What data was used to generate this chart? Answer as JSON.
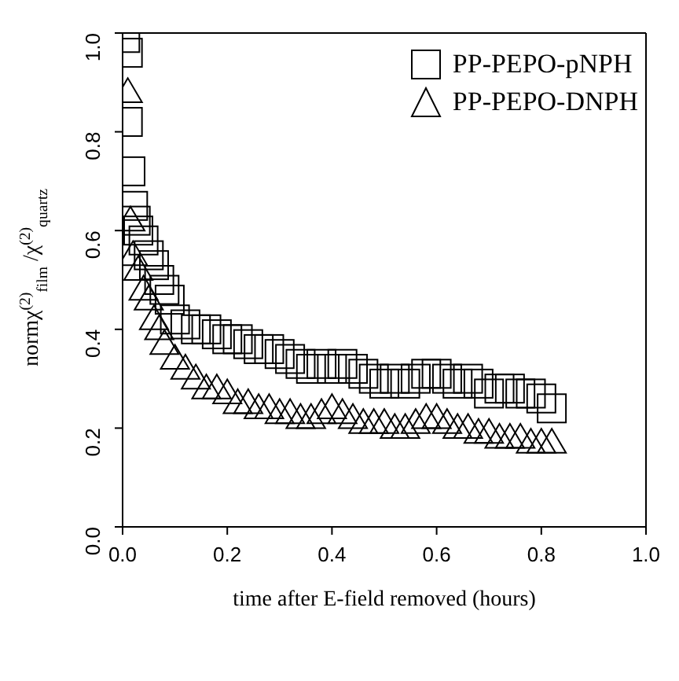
{
  "chart_data": {
    "type": "scatter",
    "xlabel": "time after E-field removed (hours)",
    "ylabel": "normχ$^{(2)}$$_{film}$ /χ$^{(2)}$$_{quartz}$",
    "xlim": [
      0,
      1
    ],
    "ylim": [
      0,
      1
    ],
    "xticks": [
      {
        "value": 0,
        "label": "0.0"
      },
      0.2,
      0.4,
      0.6,
      0.8,
      {
        "value": 1,
        "label": "1.0"
      }
    ],
    "yticks": [
      {
        "value": 0,
        "label": "0.0"
      },
      0.2,
      0.4,
      0.6,
      0.8,
      {
        "value": 1,
        "label": "1.0"
      }
    ],
    "legend": "top right",
    "grid": false,
    "series": [
      {
        "name": "PP-PEPO-pNPH",
        "color": "#000000",
        "marker": "square",
        "x": [
          0.005,
          0.01,
          0.01,
          0.015,
          0.02,
          0.025,
          0.03,
          0.04,
          0.05,
          0.06,
          0.07,
          0.08,
          0.09,
          0.1,
          0.12,
          0.14,
          0.16,
          0.18,
          0.2,
          0.22,
          0.24,
          0.26,
          0.28,
          0.3,
          0.32,
          0.34,
          0.36,
          0.38,
          0.4,
          0.42,
          0.44,
          0.46,
          0.48,
          0.5,
          0.52,
          0.54,
          0.56,
          0.58,
          0.6,
          0.62,
          0.64,
          0.66,
          0.68,
          0.7,
          0.72,
          0.74,
          0.76,
          0.78,
          0.8,
          0.82
        ],
        "values": [
          0.99,
          0.96,
          0.82,
          0.72,
          0.65,
          0.62,
          0.6,
          0.58,
          0.55,
          0.53,
          0.5,
          0.48,
          0.46,
          0.42,
          0.41,
          0.4,
          0.4,
          0.39,
          0.38,
          0.38,
          0.37,
          0.36,
          0.36,
          0.35,
          0.34,
          0.33,
          0.32,
          0.33,
          0.32,
          0.33,
          0.32,
          0.31,
          0.3,
          0.29,
          0.3,
          0.29,
          0.3,
          0.31,
          0.31,
          0.3,
          0.29,
          0.3,
          0.29,
          0.27,
          0.28,
          0.28,
          0.27,
          0.27,
          0.26,
          0.24
        ]
      },
      {
        "name": "PP-PEPO-DNPH",
        "color": "#000000",
        "marker": "triangle",
        "x": [
          0.01,
          0.015,
          0.02,
          0.03,
          0.04,
          0.05,
          0.06,
          0.07,
          0.08,
          0.1,
          0.12,
          0.14,
          0.16,
          0.18,
          0.2,
          0.22,
          0.24,
          0.26,
          0.28,
          0.3,
          0.32,
          0.34,
          0.36,
          0.38,
          0.4,
          0.42,
          0.44,
          0.46,
          0.48,
          0.5,
          0.52,
          0.54,
          0.56,
          0.58,
          0.6,
          0.62,
          0.64,
          0.66,
          0.68,
          0.7,
          0.72,
          0.74,
          0.76,
          0.78,
          0.8,
          0.82
        ],
        "values": [
          0.88,
          0.62,
          0.55,
          0.52,
          0.48,
          0.46,
          0.42,
          0.4,
          0.37,
          0.34,
          0.32,
          0.3,
          0.28,
          0.28,
          0.27,
          0.25,
          0.25,
          0.24,
          0.24,
          0.23,
          0.23,
          0.22,
          0.22,
          0.23,
          0.24,
          0.23,
          0.22,
          0.21,
          0.21,
          0.21,
          0.2,
          0.2,
          0.21,
          0.22,
          0.22,
          0.21,
          0.2,
          0.2,
          0.19,
          0.19,
          0.18,
          0.18,
          0.18,
          0.17,
          0.17,
          0.17
        ]
      }
    ]
  }
}
